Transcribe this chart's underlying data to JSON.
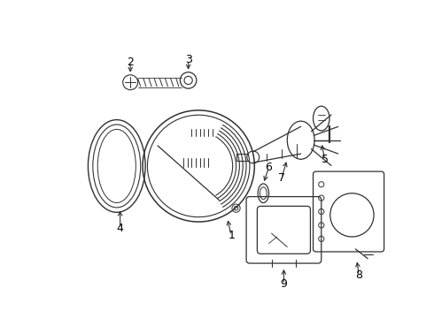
{
  "background_color": "#ffffff",
  "line_color": "#303030",
  "label_color": "#000000",
  "lw": 0.9,
  "fig_w": 4.9,
  "fig_h": 3.6,
  "dpi": 100
}
